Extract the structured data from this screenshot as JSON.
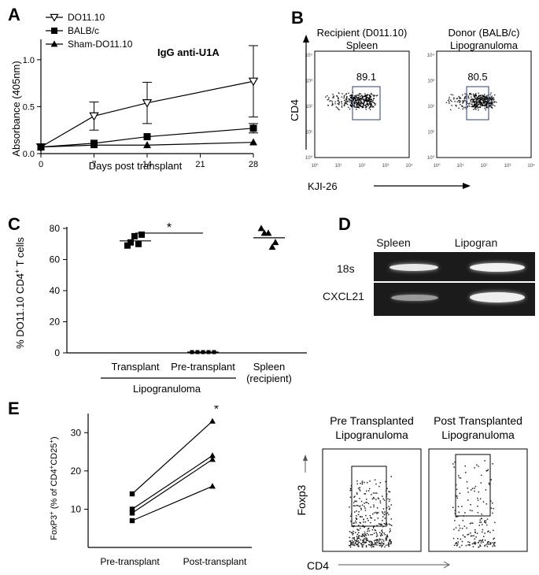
{
  "panels": {
    "A": "A",
    "B": "B",
    "C": "C",
    "D": "D",
    "E": "E"
  },
  "chart_data": [
    {
      "panel": "A",
      "type": "line",
      "title": "IgG anti-U1A",
      "xlabel": "Days post transplant",
      "ylabel": "Absorbance (405nm)",
      "x": [
        0,
        7,
        14,
        21,
        28
      ],
      "xticks": [
        "0",
        "7",
        "14",
        "21",
        "28"
      ],
      "yticks": [
        "0.0",
        "0.5",
        "1.0"
      ],
      "xlim": [
        0,
        28
      ],
      "ylim": [
        0,
        1.2
      ],
      "legend_position": "top-left",
      "series": [
        {
          "name": "DO11.10",
          "marker": "open-triangle-down",
          "x": [
            0,
            7,
            14,
            28
          ],
          "y": [
            0.07,
            0.4,
            0.54,
            0.77
          ],
          "err": [
            0.0,
            0.15,
            0.22,
            0.38
          ]
        },
        {
          "name": "BALB/c",
          "marker": "square",
          "x": [
            0,
            7,
            14,
            28
          ],
          "y": [
            0.07,
            0.11,
            0.18,
            0.27
          ],
          "err": [
            0.0,
            0.0,
            0.0,
            0.05
          ]
        },
        {
          "name": "Sham-DO11.10",
          "marker": "triangle",
          "x": [
            0,
            7,
            14,
            28
          ],
          "y": [
            0.07,
            0.09,
            0.09,
            0.12
          ],
          "err": [
            0.0,
            0.0,
            0.0,
            0.0
          ]
        }
      ]
    },
    {
      "panel": "B",
      "type": "scatter",
      "xlabel": "KJI-26",
      "ylabel": "CD4",
      "axis_scale": "log",
      "xticks": [
        "10⁰",
        "10¹",
        "10²",
        "10³",
        "10⁴"
      ],
      "yticks": [
        "10⁰",
        "10¹",
        "10²",
        "10³",
        "10⁴"
      ],
      "plots": [
        {
          "title_line1": "Recipient (D011.10)",
          "title_line2": "Spleen",
          "gate_value": "89.1"
        },
        {
          "title_line1": "Donor (BALB/c)",
          "title_line2": "Lipogranuloma",
          "gate_value": "80.5"
        }
      ]
    },
    {
      "panel": "C",
      "type": "scatter",
      "ylabel_main": "% DO11.10 CD4",
      "ylabel_sup": "+",
      "ylabel_rest": " T cells",
      "yticks": [
        "0",
        "20",
        "40",
        "60",
        "80"
      ],
      "ylim": [
        0,
        80
      ],
      "categories": [
        "Transplant",
        "Pre-transplant",
        "Spleen"
      ],
      "category_sublabel": [
        "",
        "",
        "(recipient)"
      ],
      "group_label": "Lipogranuloma",
      "significance": "*",
      "groups": [
        {
          "category": "Transplant",
          "marker": "square",
          "mean": 72,
          "points": [
            69,
            75,
            76,
            71,
            70
          ]
        },
        {
          "category": "Pre-transplant",
          "marker": "square",
          "mean": 0.5,
          "points": [
            0.5,
            0.5,
            0.5,
            0.5,
            0.5
          ]
        },
        {
          "category": "Spleen",
          "marker": "triangle",
          "mean": 74,
          "points": [
            80,
            77,
            71,
            77,
            68
          ]
        }
      ]
    },
    {
      "panel": "D",
      "type": "table",
      "columns": [
        "Spleen",
        "Lipogran"
      ],
      "rows": [
        "18s",
        "CXCL21"
      ],
      "band_intensity": [
        [
          0.85,
          0.95
        ],
        [
          0.45,
          0.9
        ]
      ]
    },
    {
      "panel": "E",
      "type": "line",
      "ylabel_main": "FoxP3",
      "ylabel_sup1": "+",
      "ylabel_mid": " (% of CD4",
      "ylabel_sup2": "+",
      "ylabel_mid2": "CD25",
      "ylabel_sup3": "+",
      "ylabel_end": ")",
      "categories": [
        "Pre-transplant",
        "Post-transplant"
      ],
      "yticks": [
        "10",
        "20",
        "30"
      ],
      "ylim": [
        0,
        35
      ],
      "significance": "*",
      "series": [
        {
          "marker": "square",
          "pre": 14,
          "post": 33
        },
        {
          "marker": "square",
          "pre": 10,
          "post": 24
        },
        {
          "marker": "square",
          "pre": 9,
          "post": 23
        },
        {
          "marker": "square",
          "pre": 7,
          "post": 16
        }
      ]
    },
    {
      "panel": "E-flow",
      "type": "scatter",
      "xlabel": "CD4",
      "ylabel": "Foxp3",
      "plots": [
        {
          "title_line1": "Pre Transplanted",
          "title_line2": "Lipogranuloma"
        },
        {
          "title_line1": "Post Transplanted",
          "title_line2": "Lipogranuloma"
        }
      ]
    }
  ]
}
